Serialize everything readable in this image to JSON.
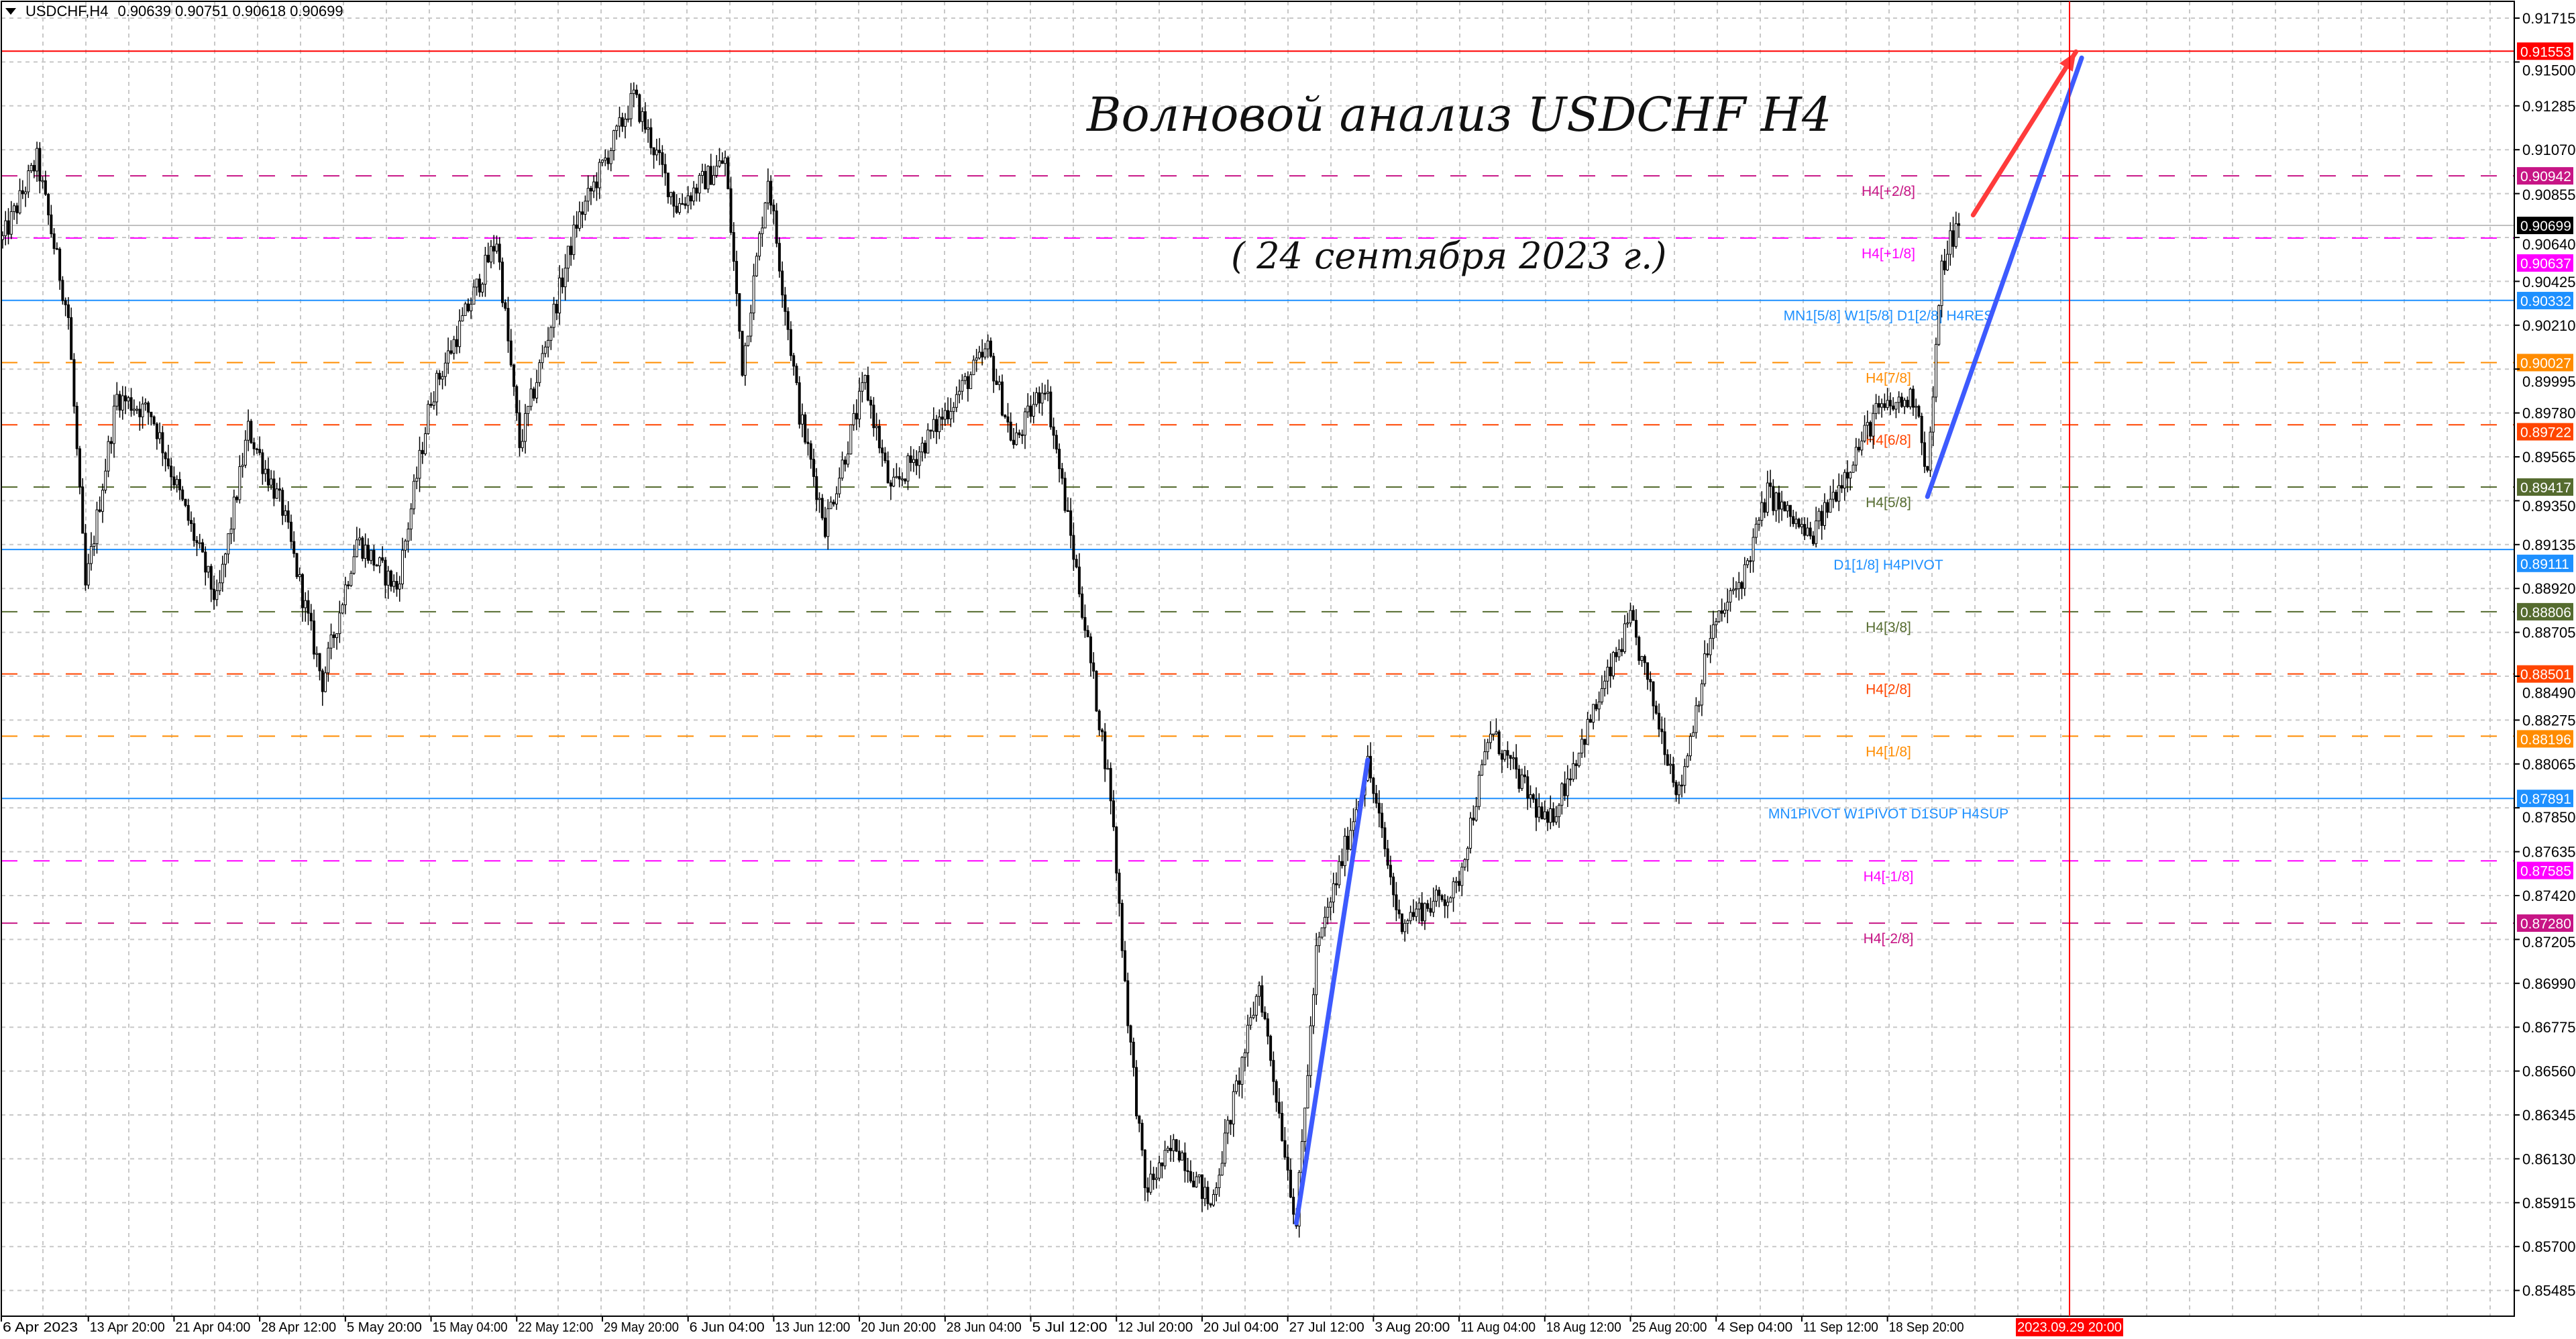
{
  "header": {
    "symbol": "USDCHF,H4",
    "open": "0.90639",
    "high": "0.90751",
    "low": "0.90618",
    "close": "0.90699",
    "menu_icon": "triangle-down-icon"
  },
  "annotation": {
    "title": "Волновой анализ USDCHF H4",
    "subtitle": "( 24 сентября 2023 г.)"
  },
  "price_axis": {
    "ticks": [
      "0.91715",
      "0.91500",
      "0.91285",
      "0.91070",
      "0.90855",
      "0.90640",
      "0.90425",
      "0.90210",
      "0.89995",
      "0.89780",
      "0.89565",
      "0.89350",
      "0.89135",
      "0.88920",
      "0.88705",
      "0.88490",
      "0.88275",
      "0.88065",
      "0.87850",
      "0.87635",
      "0.87420",
      "0.87205",
      "0.86990",
      "0.86775",
      "0.86560",
      "0.86345",
      "0.86130",
      "0.85915",
      "0.85700",
      "0.85485"
    ],
    "current_price": "0.90699",
    "current_price_color": "#000000"
  },
  "levels": [
    {
      "price": "0.91553",
      "label": "",
      "color": "#ff0000",
      "style": "solid"
    },
    {
      "price": "0.90942",
      "label": "H4[+2/8]",
      "color": "#c71585",
      "style": "dash"
    },
    {
      "price": "0.90637",
      "label": "H4[+1/8]",
      "color": "#ff00ff",
      "style": "dash"
    },
    {
      "price": "0.90332",
      "label": "MN1[5/8] W1[5/8] D1[2/8] H4RES",
      "color": "#1e90ff",
      "style": "solid"
    },
    {
      "price": "0.90027",
      "label": "H4[7/8]",
      "color": "#ff8c00",
      "style": "dash"
    },
    {
      "price": "0.89722",
      "label": "H4[6/8]",
      "color": "#ff4500",
      "style": "dash"
    },
    {
      "price": "0.89417",
      "label": "H4[5/8]",
      "color": "#556b2f",
      "style": "dash"
    },
    {
      "price": "0.89111",
      "label": "D1[1/8] H4PIVOT",
      "color": "#1e90ff",
      "style": "solid"
    },
    {
      "price": "0.88806",
      "label": "H4[3/8]",
      "color": "#556b2f",
      "style": "dash"
    },
    {
      "price": "0.88501",
      "label": "H4[2/8]",
      "color": "#ff4500",
      "style": "dash"
    },
    {
      "price": "0.88196",
      "label": "H4[1/8]",
      "color": "#ff8c00",
      "style": "dash"
    },
    {
      "price": "0.87891",
      "label": "MN1PIVOT W1PIVOT D1SUP H4SUP",
      "color": "#1e90ff",
      "style": "solid"
    },
    {
      "price": "0.87585",
      "label": "H4[-1/8]",
      "color": "#ff00ff",
      "style": "dash"
    },
    {
      "price": "0.87280",
      "label": "H4[-2/8]",
      "color": "#c71585",
      "style": "dash"
    }
  ],
  "time_axis": {
    "labels": [
      "6 Apr 2023",
      "13 Apr 20:00",
      "21 Apr 04:00",
      "28 Apr 12:00",
      "5 May 20:00",
      "15 May 04:00",
      "22 May 12:00",
      "29 May 20:00",
      "6 Jun 04:00",
      "13 Jun 12:00",
      "20 Jun 20:00",
      "28 Jun 04:00",
      "5 Jul 12:00",
      "12 Jul 20:00",
      "20 Jul 04:00",
      "27 Jul 12:00",
      "3 Aug 20:00",
      "11 Aug 04:00",
      "18 Aug 12:00",
      "25 Aug 20:00",
      "4 Sep 04:00",
      "11 Sep 12:00",
      "18 Sep 20:00"
    ],
    "marker_label": "2023.09.29 20:00",
    "marker_color": "#ff0000"
  },
  "chart_data": {
    "type": "candlestick",
    "symbol": "USDCHF",
    "timeframe": "H4",
    "ylim": [
      0.85485,
      0.91715
    ],
    "grid": true,
    "price_path": [
      [
        0,
        0.9063
      ],
      [
        12,
        0.9102
      ],
      [
        23,
        0.9025
      ],
      [
        29,
        0.8892
      ],
      [
        40,
        0.8986
      ],
      [
        52,
        0.8978
      ],
      [
        75,
        0.8885
      ],
      [
        86,
        0.897
      ],
      [
        98,
        0.8931
      ],
      [
        112,
        0.8846
      ],
      [
        124,
        0.8916
      ],
      [
        138,
        0.8892
      ],
      [
        150,
        0.8986
      ],
      [
        173,
        0.9063
      ],
      [
        181,
        0.8962
      ],
      [
        201,
        0.9071
      ],
      [
        221,
        0.9133
      ],
      [
        236,
        0.9079
      ],
      [
        253,
        0.9102
      ],
      [
        259,
        0.9001
      ],
      [
        268,
        0.9094
      ],
      [
        279,
        0.8978
      ],
      [
        288,
        0.8923
      ],
      [
        302,
        0.8993
      ],
      [
        311,
        0.8939
      ],
      [
        345,
        0.9009
      ],
      [
        354,
        0.8962
      ],
      [
        365,
        0.8993
      ],
      [
        377,
        0.8892
      ],
      [
        388,
        0.8791
      ],
      [
        394,
        0.8682
      ],
      [
        400,
        0.8597
      ],
      [
        411,
        0.862
      ],
      [
        423,
        0.8589
      ],
      [
        440,
        0.8698
      ],
      [
        453,
        0.8581
      ],
      [
        460,
        0.8713
      ],
      [
        478,
        0.8806
      ],
      [
        489,
        0.8729
      ],
      [
        509,
        0.8744
      ],
      [
        521,
        0.8822
      ],
      [
        541,
        0.8775
      ],
      [
        570,
        0.8876
      ],
      [
        587,
        0.8791
      ],
      [
        598,
        0.8869
      ],
      [
        610,
        0.89
      ],
      [
        618,
        0.8939
      ],
      [
        633,
        0.8916
      ],
      [
        656,
        0.8978
      ],
      [
        670,
        0.8986
      ],
      [
        674,
        0.8947
      ],
      [
        679,
        0.9048
      ],
      [
        682,
        0.9063
      ],
      [
        685,
        0.90699
      ]
    ],
    "trendlines": [
      {
        "color": "#3d5afe",
        "from": [
          453,
          0.8581
        ],
        "to": [
          478,
          0.8808
        ]
      },
      {
        "color": "#3d5afe",
        "from": [
          674,
          0.8937
        ],
        "to": [
          728,
          0.9152
        ]
      },
      {
        "color": "#ff3b3b",
        "from": [
          690,
          0.9075
        ],
        "to": [
          726,
          0.9155
        ],
        "arrow": true
      }
    ]
  }
}
